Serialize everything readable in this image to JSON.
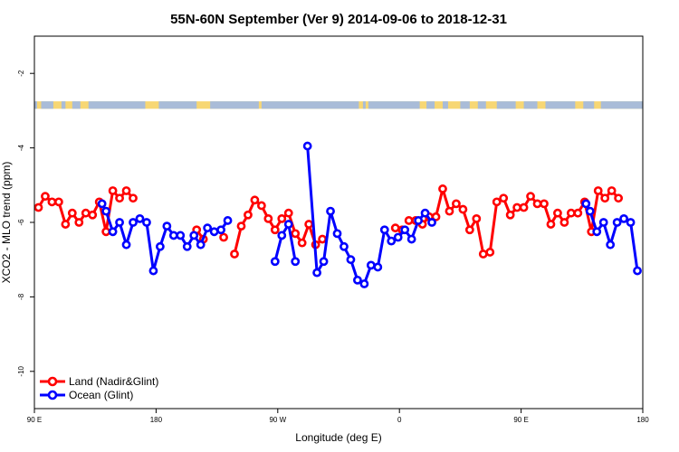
{
  "chart_data": {
    "type": "line",
    "title": "55N-60N September (Ver 9)   2014-09-06 to 2018-12-31",
    "xlabel": "Longitude (deg E)",
    "ylabel": "XCO2 - MLO trend (ppm)",
    "xlim": [
      90,
      540
    ],
    "ylim": [
      -11,
      -1
    ],
    "x_ticks": [
      {
        "value": 90,
        "label": "90 E"
      },
      {
        "value": 180,
        "label": "180"
      },
      {
        "value": 270,
        "label": "90 W"
      },
      {
        "value": 360,
        "label": "0"
      },
      {
        "value": 450,
        "label": "90 E"
      },
      {
        "value": 540,
        "label": "180"
      }
    ],
    "y_ticks": [
      {
        "value": -2,
        "label": "-2"
      },
      {
        "value": -4,
        "label": "-4"
      },
      {
        "value": -6,
        "label": "-6"
      },
      {
        "value": -8,
        "label": "-8"
      },
      {
        "value": -10,
        "label": "-10"
      }
    ],
    "legend": {
      "position": "bottom-left"
    },
    "map_strip": {
      "y_top": -2.75,
      "y_bottom": -2.95,
      "land_color": "#f7d774",
      "ocean_color": "#a9bcd8"
    },
    "series": [
      {
        "name": "Land (Nadir&Glint)",
        "color": "#ff0000",
        "points": [
          [
            93,
            -5.6
          ],
          [
            98,
            -5.3
          ],
          [
            103,
            -5.45
          ],
          [
            108,
            -5.45
          ],
          [
            113,
            -6.05
          ],
          [
            118,
            -5.75
          ],
          [
            123,
            -6
          ],
          [
            128,
            -5.75
          ],
          [
            133,
            -5.8
          ],
          [
            138,
            -5.45
          ],
          [
            143,
            -6.25
          ],
          [
            148,
            -5.15
          ],
          [
            153,
            -5.35
          ],
          [
            158,
            -5.15
          ],
          [
            163,
            -5.35
          ],
          null,
          [
            210,
            -6.2
          ],
          [
            215,
            -6.45
          ],
          null,
          [
            230,
            -6.4
          ],
          null,
          [
            238,
            -6.85
          ],
          [
            243,
            -6.1
          ],
          [
            248,
            -5.8
          ],
          [
            253,
            -5.4
          ],
          [
            258,
            -5.55
          ],
          [
            263,
            -5.9
          ],
          [
            268,
            -6.2
          ],
          [
            273,
            -5.9
          ],
          [
            278,
            -5.75
          ],
          [
            283,
            -6.3
          ],
          [
            288,
            -6.55
          ],
          [
            293,
            -6.05
          ],
          [
            298,
            -6.6
          ],
          [
            303,
            -6.45
          ],
          null,
          [
            357,
            -6.15
          ],
          [
            362,
            -6.2
          ],
          null,
          [
            367,
            -5.95
          ],
          [
            372,
            -5.95
          ],
          [
            377,
            -6.05
          ],
          [
            382,
            -5.85
          ],
          [
            387,
            -5.85
          ],
          [
            392,
            -5.1
          ],
          [
            397,
            -5.7
          ],
          [
            402,
            -5.5
          ],
          [
            407,
            -5.65
          ],
          [
            412,
            -6.2
          ],
          [
            417,
            -5.9
          ],
          [
            422,
            -6.85
          ],
          [
            427,
            -6.8
          ],
          [
            432,
            -5.45
          ],
          [
            437,
            -5.35
          ],
          [
            442,
            -5.8
          ],
          [
            447,
            -5.6
          ],
          [
            452,
            -5.6
          ],
          [
            457,
            -5.3
          ],
          [
            462,
            -5.5
          ],
          [
            467,
            -5.5
          ],
          [
            472,
            -6.05
          ],
          [
            477,
            -5.75
          ],
          [
            482,
            -6
          ],
          [
            487,
            -5.75
          ],
          [
            492,
            -5.75
          ],
          [
            497,
            -5.45
          ],
          [
            502,
            -6.25
          ],
          [
            507,
            -5.15
          ],
          [
            512,
            -5.35
          ],
          [
            517,
            -5.15
          ],
          [
            522,
            -5.35
          ]
        ]
      },
      {
        "name": "Ocean (Glint)",
        "color": "#0000ff",
        "points": [
          [
            140,
            -5.5
          ],
          [
            143,
            -5.7
          ],
          [
            148,
            -6.25
          ],
          [
            153,
            -6
          ],
          [
            158,
            -6.6
          ],
          [
            163,
            -6
          ],
          [
            168,
            -5.9
          ],
          [
            173,
            -6
          ],
          [
            178,
            -7.3
          ],
          [
            183,
            -6.65
          ],
          [
            188,
            -6.1
          ],
          [
            193,
            -6.35
          ],
          [
            198,
            -6.35
          ],
          [
            203,
            -6.65
          ],
          [
            208,
            -6.35
          ],
          [
            213,
            -6.6
          ],
          [
            218,
            -6.15
          ],
          [
            223,
            -6.25
          ],
          [
            228,
            -6.2
          ],
          [
            233,
            -5.95
          ],
          null,
          [
            268,
            -7.05
          ],
          [
            273,
            -6.35
          ],
          [
            278,
            -6.05
          ],
          [
            283,
            -7.05
          ],
          null,
          [
            292,
            -3.95
          ],
          [
            299,
            -7.35
          ],
          [
            304,
            -7.05
          ],
          [
            309,
            -5.7
          ],
          [
            314,
            -6.3
          ],
          [
            319,
            -6.65
          ],
          [
            324,
            -7
          ],
          [
            329,
            -7.55
          ],
          [
            334,
            -7.65
          ],
          [
            339,
            -7.15
          ],
          [
            344,
            -7.2
          ],
          [
            349,
            -6.2
          ],
          [
            354,
            -6.5
          ],
          [
            359,
            -6.4
          ],
          [
            364,
            -6.2
          ],
          [
            369,
            -6.45
          ],
          [
            374,
            -5.95
          ],
          [
            379,
            -5.75
          ],
          [
            384,
            -6
          ],
          null,
          [
            498,
            -5.5
          ],
          [
            501,
            -5.7
          ],
          [
            506,
            -6.25
          ],
          [
            511,
            -6
          ],
          [
            516,
            -6.6
          ],
          [
            521,
            -6
          ],
          [
            526,
            -5.9
          ],
          [
            531,
            -6
          ],
          [
            536,
            -7.3
          ]
        ]
      }
    ]
  }
}
